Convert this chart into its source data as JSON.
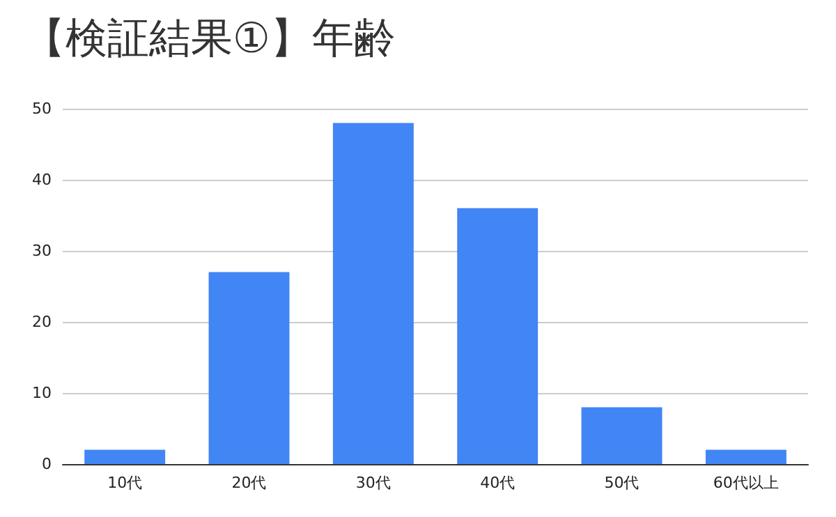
{
  "chart_data": {
    "type": "bar",
    "title": "【検証結果①】年齢",
    "categories": [
      "10代",
      "20代",
      "30代",
      "40代",
      "50代",
      "60代以上"
    ],
    "values": [
      2,
      27,
      48,
      36,
      8,
      2
    ],
    "color": "#4285f4",
    "ylim": [
      0,
      50
    ],
    "yticks": [
      0,
      10,
      20,
      30,
      40,
      50
    ],
    "grid": "y"
  }
}
